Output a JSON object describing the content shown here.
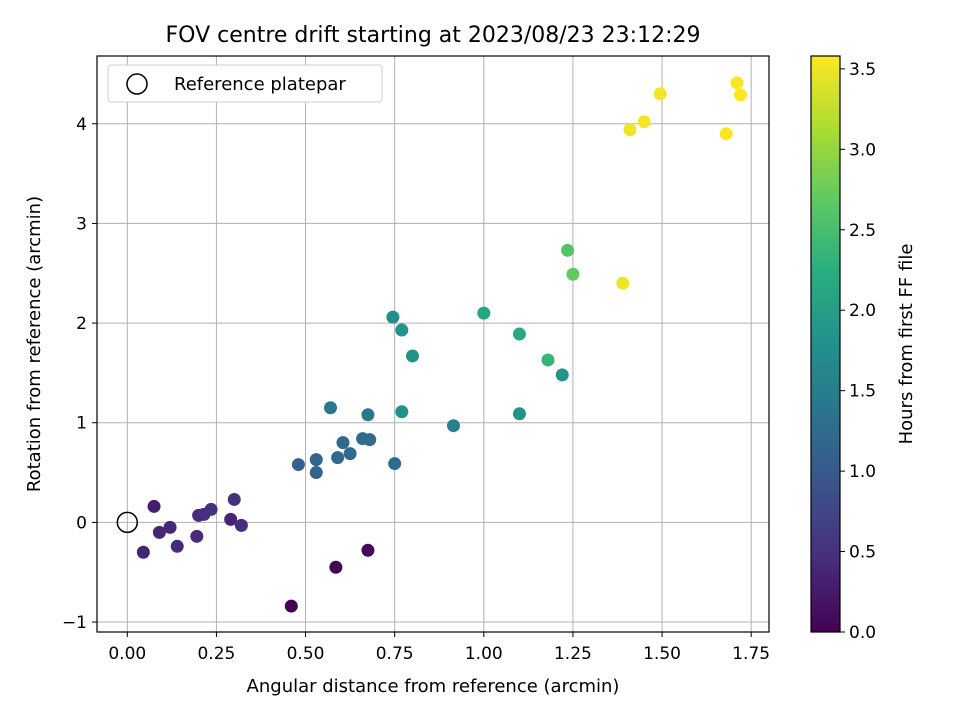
{
  "chart_data": {
    "type": "scatter",
    "title": "FOV centre drift starting at 2023/08/23 23:12:29",
    "xlabel": "Angular distance from reference (arcmin)",
    "ylabel": "Rotation from reference (arcmin)",
    "colorbar_label": "Hours from first FF file",
    "xlim": [
      -0.085,
      1.8
    ],
    "ylim": [
      -1.1,
      4.68
    ],
    "clim": [
      0.0,
      3.58
    ],
    "xticks": [
      0.0,
      0.25,
      0.5,
      0.75,
      1.0,
      1.25,
      1.5,
      1.75
    ],
    "xtick_labels": [
      "0.00",
      "0.25",
      "0.50",
      "0.75",
      "1.00",
      "1.25",
      "1.50",
      "1.75"
    ],
    "yticks": [
      -1,
      0,
      1,
      2,
      3,
      4
    ],
    "ytick_labels": [
      "−1",
      "0",
      "1",
      "2",
      "3",
      "4"
    ],
    "cticks": [
      0.0,
      0.5,
      1.0,
      1.5,
      2.0,
      2.5,
      3.0,
      3.5
    ],
    "ctick_labels": [
      "0.0",
      "0.5",
      "1.0",
      "1.5",
      "2.0",
      "2.5",
      "3.0",
      "3.5"
    ],
    "colormap": "viridis",
    "grid": true,
    "legend": {
      "entry": "Reference platepar",
      "placement": "upper-left"
    },
    "reference_point": {
      "x": 0.0,
      "y": 0.0
    },
    "points": [
      {
        "x": 0.46,
        "y": -0.84,
        "h": 0.0
      },
      {
        "x": 0.585,
        "y": -0.45,
        "h": 0.05
      },
      {
        "x": 0.675,
        "y": -0.28,
        "h": 0.08
      },
      {
        "x": 0.075,
        "y": 0.16,
        "h": 0.3
      },
      {
        "x": 0.045,
        "y": -0.3,
        "h": 0.35
      },
      {
        "x": 0.29,
        "y": 0.03,
        "h": 0.35
      },
      {
        "x": 0.09,
        "y": -0.1,
        "h": 0.38
      },
      {
        "x": 0.12,
        "y": -0.05,
        "h": 0.4
      },
      {
        "x": 0.14,
        "y": -0.24,
        "h": 0.42
      },
      {
        "x": 0.195,
        "y": -0.14,
        "h": 0.43
      },
      {
        "x": 0.2,
        "y": 0.07,
        "h": 0.45
      },
      {
        "x": 0.215,
        "y": 0.08,
        "h": 0.48
      },
      {
        "x": 0.235,
        "y": 0.13,
        "h": 0.5
      },
      {
        "x": 0.3,
        "y": 0.23,
        "h": 0.5
      },
      {
        "x": 0.32,
        "y": -0.03,
        "h": 0.45
      },
      {
        "x": 0.48,
        "y": 0.58,
        "h": 1.1
      },
      {
        "x": 0.53,
        "y": 0.63,
        "h": 1.15
      },
      {
        "x": 0.53,
        "y": 0.5,
        "h": 1.15
      },
      {
        "x": 0.59,
        "y": 0.65,
        "h": 1.2
      },
      {
        "x": 0.605,
        "y": 0.8,
        "h": 1.22
      },
      {
        "x": 0.625,
        "y": 0.69,
        "h": 1.25
      },
      {
        "x": 0.66,
        "y": 0.84,
        "h": 1.25
      },
      {
        "x": 0.68,
        "y": 0.83,
        "h": 1.25
      },
      {
        "x": 0.75,
        "y": 0.59,
        "h": 1.25
      },
      {
        "x": 0.57,
        "y": 1.15,
        "h": 1.4
      },
      {
        "x": 0.675,
        "y": 1.08,
        "h": 1.45
      },
      {
        "x": 0.915,
        "y": 0.97,
        "h": 1.55
      },
      {
        "x": 0.77,
        "y": 1.11,
        "h": 1.8
      },
      {
        "x": 0.745,
        "y": 2.06,
        "h": 1.75
      },
      {
        "x": 0.77,
        "y": 1.93,
        "h": 1.8
      },
      {
        "x": 0.8,
        "y": 1.67,
        "h": 1.85
      },
      {
        "x": 1.1,
        "y": 1.09,
        "h": 1.85
      },
      {
        "x": 1.22,
        "y": 1.48,
        "h": 1.85
      },
      {
        "x": 1.0,
        "y": 2.1,
        "h": 2.1
      },
      {
        "x": 1.1,
        "y": 1.89,
        "h": 2.15
      },
      {
        "x": 1.18,
        "y": 1.63,
        "h": 2.35
      },
      {
        "x": 1.235,
        "y": 2.73,
        "h": 2.6
      },
      {
        "x": 1.25,
        "y": 2.49,
        "h": 2.7
      },
      {
        "x": 1.39,
        "y": 2.4,
        "h": 3.5
      },
      {
        "x": 1.41,
        "y": 3.94,
        "h": 3.5
      },
      {
        "x": 1.45,
        "y": 4.02,
        "h": 3.52
      },
      {
        "x": 1.495,
        "y": 4.3,
        "h": 3.52
      },
      {
        "x": 1.68,
        "y": 3.9,
        "h": 3.55
      },
      {
        "x": 1.71,
        "y": 4.41,
        "h": 3.57
      },
      {
        "x": 1.72,
        "y": 4.29,
        "h": 3.58
      }
    ]
  }
}
